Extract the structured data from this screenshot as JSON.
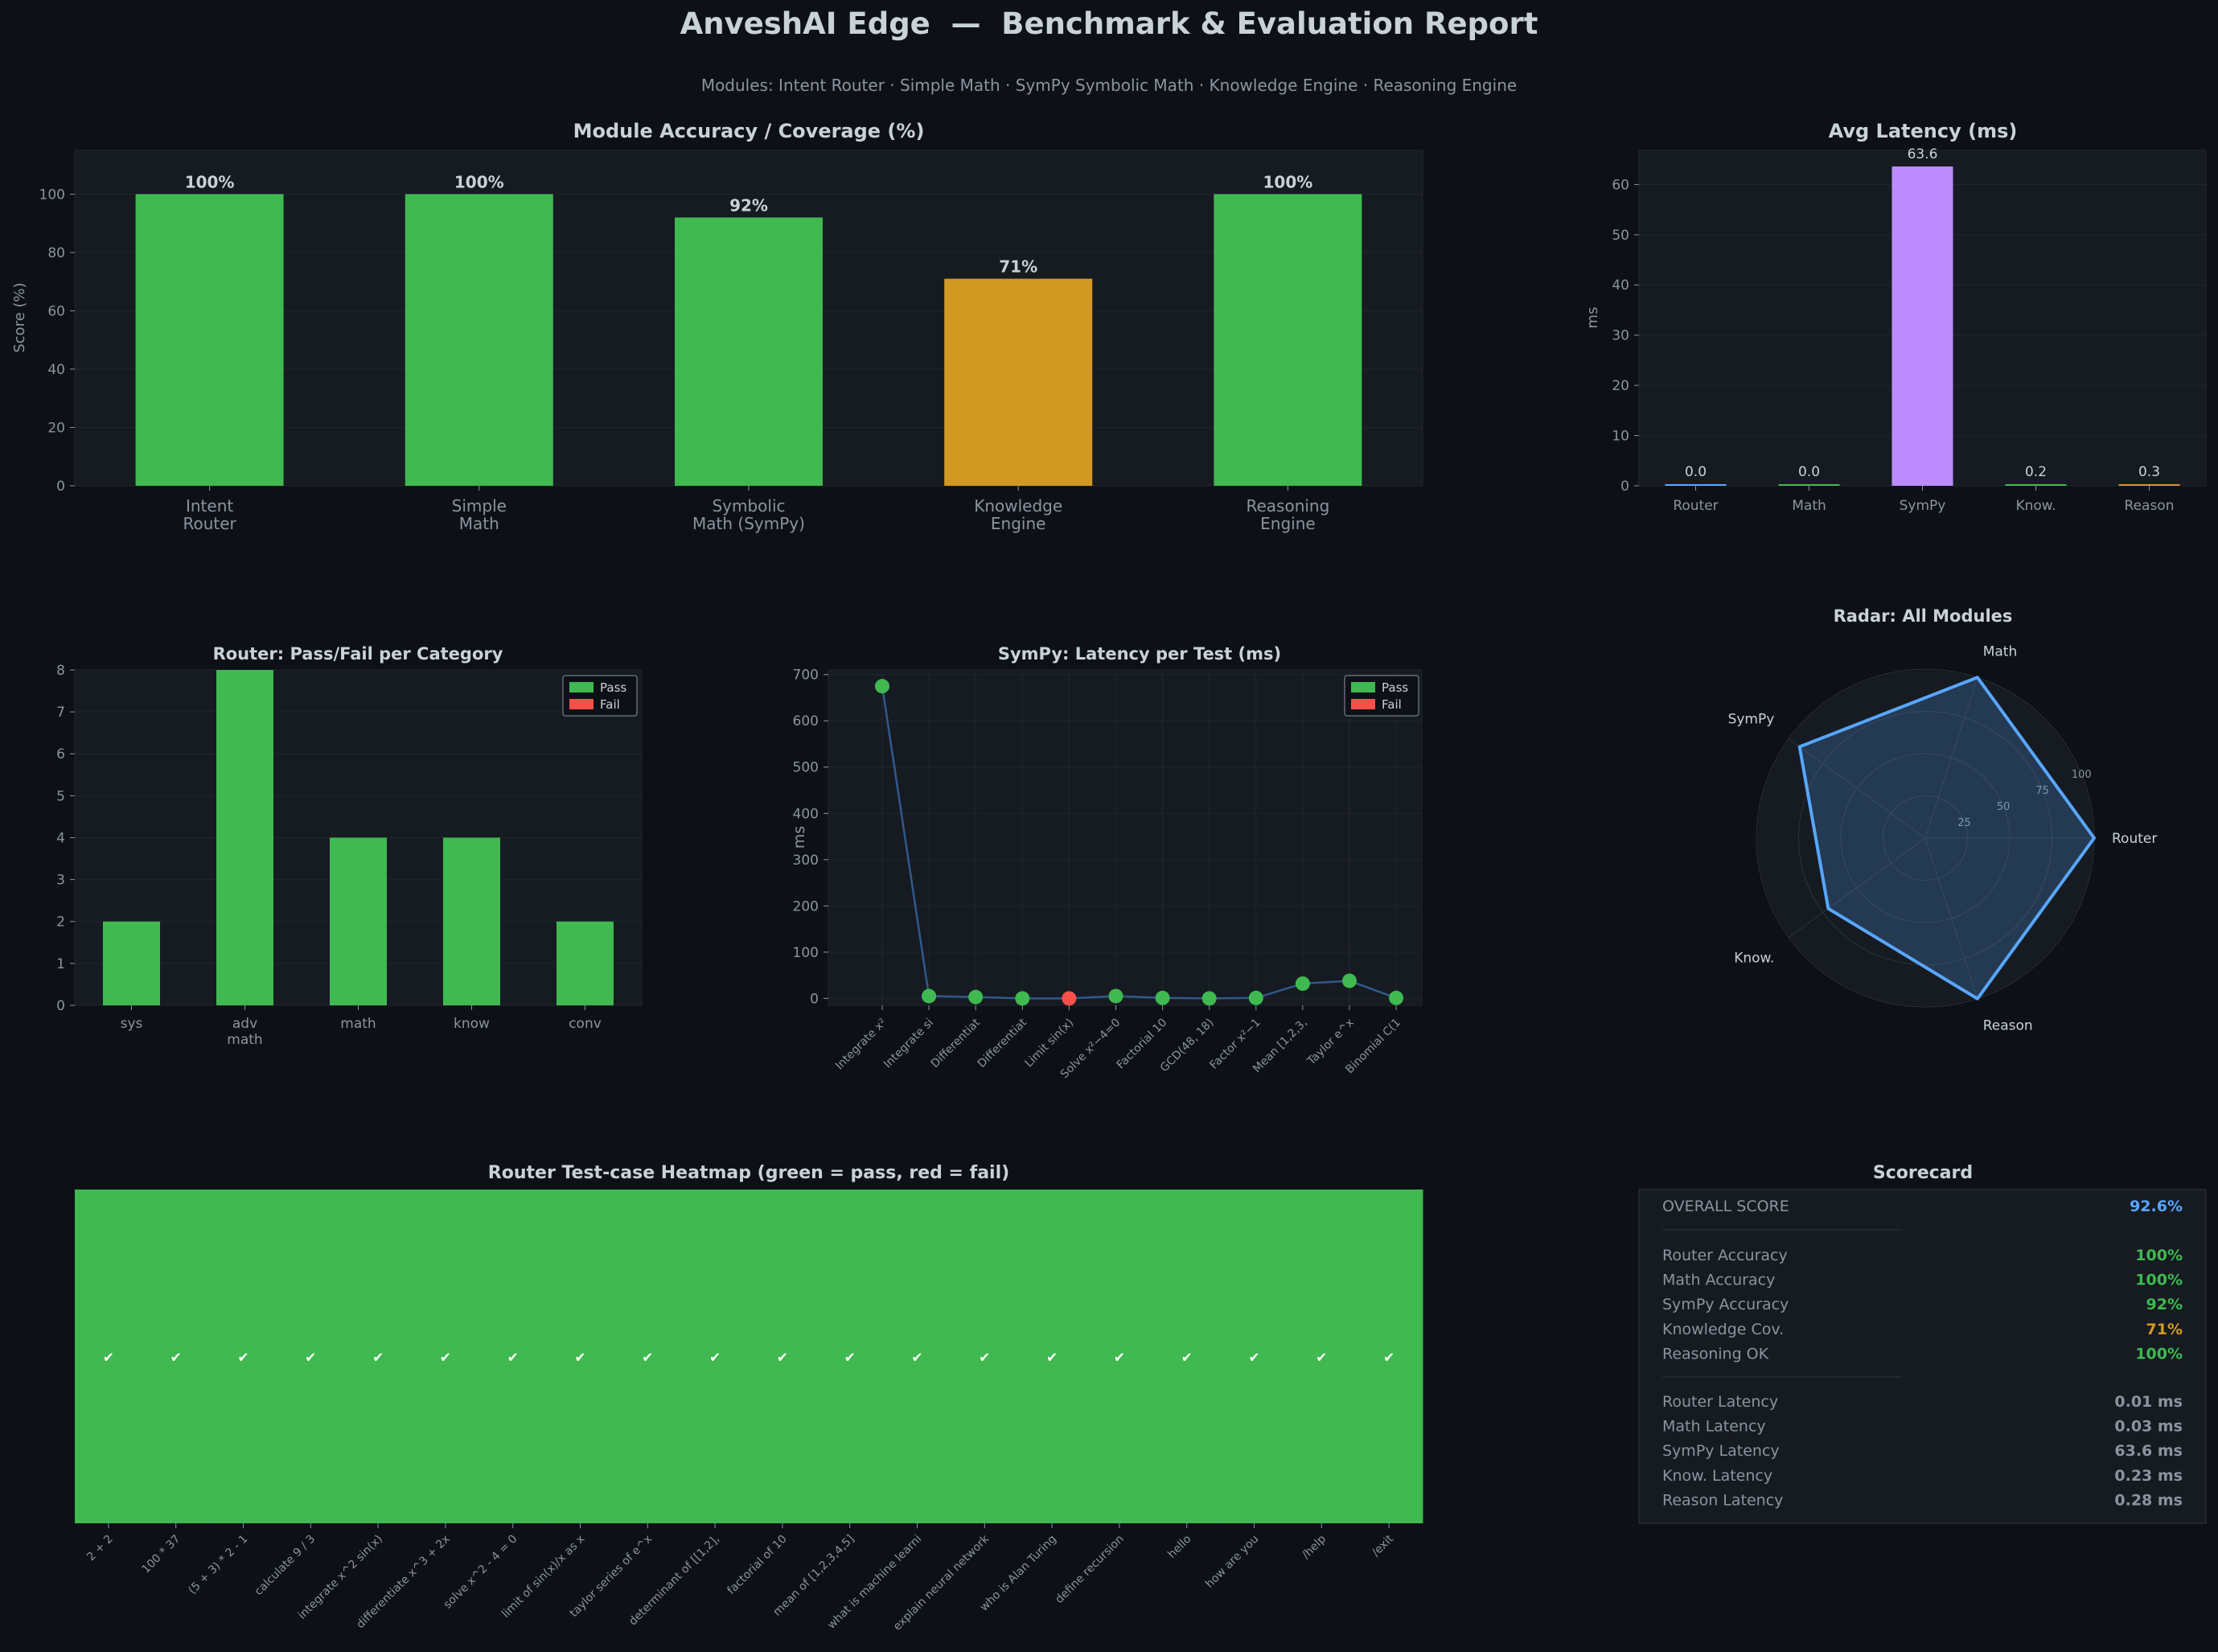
{
  "title": "AnveshAI Edge  —  Benchmark & Evaluation Report",
  "subtitle": "Modules: Intent Router · Simple Math · SymPy Symbolic Math · Knowledge Engine · Reasoning Engine",
  "colors": {
    "background": "#0d1117",
    "panel": "#161b22",
    "green": "#3fb950",
    "orange": "#d29922",
    "purple": "#bc8cff",
    "red": "#f85149",
    "blue": "#58a6ff",
    "text": "#c9d1d9",
    "muted": "#8b949e"
  },
  "chart_data": [
    {
      "id": "accuracy",
      "type": "bar",
      "title": "Module Accuracy / Coverage  (%)",
      "ylabel": "Score (%)",
      "xlabel": "",
      "categories": [
        [
          "Intent",
          "Router"
        ],
        [
          "Simple",
          "Math"
        ],
        [
          "Symbolic",
          "Math (SymPy)"
        ],
        [
          "Knowledge",
          "Engine"
        ],
        [
          "Reasoning",
          "Engine"
        ]
      ],
      "values": [
        100,
        100,
        92,
        71,
        100
      ],
      "labels": [
        "100%",
        "100%",
        "92%",
        "71%",
        "100%"
      ],
      "bar_colors": [
        "green",
        "green",
        "green",
        "orange",
        "green"
      ],
      "ylim": [
        0,
        115
      ],
      "yticks": [
        0,
        20,
        40,
        60,
        80,
        100
      ],
      "grid": true
    },
    {
      "id": "latency",
      "type": "bar",
      "title": "Avg Latency  (ms)",
      "ylabel": "ms",
      "categories": [
        "Router",
        "Math",
        "SymPy",
        "Know.",
        "Reason"
      ],
      "values": [
        0.01,
        0.03,
        63.6,
        0.23,
        0.28
      ],
      "labels": [
        "0.0",
        "0.0",
        "63.6",
        "0.2",
        "0.3"
      ],
      "bar_colors": [
        "blue",
        "green",
        "purple",
        "green",
        "orange"
      ],
      "ylim": [
        0,
        66.8
      ],
      "yticks": [
        0,
        10,
        20,
        30,
        40,
        50,
        60
      ],
      "grid": true
    },
    {
      "id": "router_cat",
      "type": "bar",
      "title": "Router: Pass/Fail per Category",
      "categories": [
        [
          "sys"
        ],
        [
          "adv",
          "math"
        ],
        [
          "math"
        ],
        [
          "know"
        ],
        [
          "conv"
        ]
      ],
      "series": [
        {
          "name": "Pass",
          "values": [
            2,
            8,
            4,
            4,
            2
          ]
        },
        {
          "name": "Fail",
          "values": [
            0,
            0,
            0,
            0,
            0
          ]
        }
      ],
      "ylim": [
        0,
        8
      ],
      "yticks": [
        0,
        1,
        2,
        3,
        4,
        5,
        6,
        7,
        8
      ],
      "legend": [
        "Pass",
        "Fail"
      ],
      "legend_position": "top-right",
      "grid": true
    },
    {
      "id": "sympy",
      "type": "line",
      "title": "SymPy: Latency per Test (ms)",
      "ylabel": "ms",
      "x": [
        "Integrate x²",
        "Integrate si",
        "Differentiat",
        "Differentiat",
        "Limit sin(x)",
        "Solve x²−4=0",
        "Factorial 10",
        "GCD(48, 18)",
        "Factor x²−1",
        "Mean [1,2,3,",
        "Taylor e^x",
        "Binomial C(1"
      ],
      "values": [
        675,
        5,
        3,
        0,
        0,
        5,
        1,
        0,
        1,
        32,
        38,
        1
      ],
      "pass": [
        true,
        true,
        true,
        true,
        false,
        true,
        true,
        true,
        true,
        true,
        true,
        true
      ],
      "ylim": [
        -15,
        710
      ],
      "yticks": [
        0,
        100,
        200,
        300,
        400,
        500,
        600,
        700
      ],
      "legend": [
        "Pass",
        "Fail"
      ],
      "legend_position": "top-right",
      "grid": true
    },
    {
      "id": "radar",
      "type": "radar",
      "title": "Radar: All Modules",
      "axes": [
        "Router",
        "Math",
        "SymPy",
        "Know.",
        "Reason"
      ],
      "values": [
        100,
        100,
        92,
        71,
        100
      ],
      "rticks": [
        25,
        50,
        75,
        100
      ],
      "rmax": 100
    },
    {
      "id": "heatmap",
      "type": "heatmap",
      "title": "Router Test-case Heatmap  (green = pass, red = fail)",
      "x": [
        "2 + 2",
        "100 * 37",
        "(5 + 3) * 2 - 1",
        "calculate 9 / 3",
        "integrate x^2 sin(x)",
        "differentiate x^3 + 2x",
        "solve x^2 - 4 = 0",
        "limit of sin(x)/x as x",
        "taylor series of e^x",
        "determinant of [[1,2],",
        "factorial of 10",
        "mean of [1,2,3,4,5]",
        "what is machine learni",
        "explain neural network",
        "who is Alan Turing",
        "define recursion",
        "hello",
        "how are you",
        "/help",
        "/exit"
      ],
      "values": [
        1,
        1,
        1,
        1,
        1,
        1,
        1,
        1,
        1,
        1,
        1,
        1,
        1,
        1,
        1,
        1,
        1,
        1,
        1,
        1
      ],
      "pass_mark": "✔",
      "fail_mark": "✘"
    }
  ],
  "scorecard": {
    "title": "Scorecard",
    "overall": {
      "label": "OVERALL SCORE",
      "value": "92.6%",
      "color": "blue"
    },
    "accuracy": [
      {
        "label": "Router Accuracy",
        "value": "100%",
        "color": "green"
      },
      {
        "label": "Math Accuracy",
        "value": "100%",
        "color": "green"
      },
      {
        "label": "SymPy Accuracy",
        "value": "92%",
        "color": "green"
      },
      {
        "label": "Knowledge Cov.",
        "value": "71%",
        "color": "orange"
      },
      {
        "label": "Reasoning OK",
        "value": "100%",
        "color": "green"
      }
    ],
    "latency": [
      {
        "label": "Router Latency",
        "value": "0.01 ms"
      },
      {
        "label": "Math Latency",
        "value": "0.03 ms"
      },
      {
        "label": "SymPy Latency",
        "value": "63.6 ms"
      },
      {
        "label": "Know. Latency",
        "value": "0.23 ms"
      },
      {
        "label": "Reason Latency",
        "value": "0.28 ms"
      }
    ]
  }
}
